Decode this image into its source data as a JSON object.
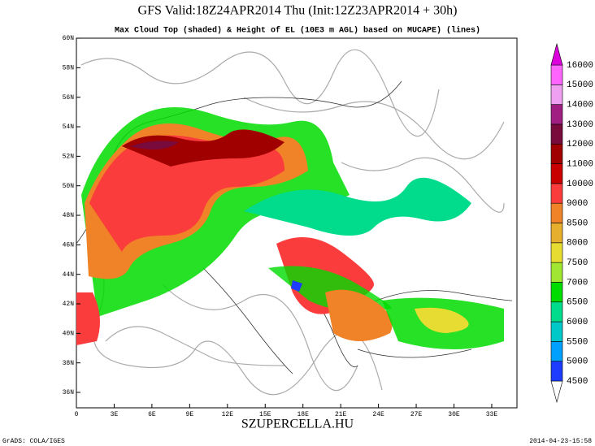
{
  "header": {
    "title": "GFS Valid:18Z24APR2014 Thu (Init:12Z23APR2014 + 30h)",
    "subtitle": "Max Cloud Top (shaded) & Height of EL (10E3 m AGL) based on MUCAPE) (lines)"
  },
  "map": {
    "lat_labels": [
      "36N",
      "38N",
      "40N",
      "42N",
      "44N",
      "46N",
      "48N",
      "50N",
      "52N",
      "54N",
      "56N",
      "58N",
      "60N"
    ],
    "lon_labels": [
      "0",
      "3E",
      "6E",
      "9E",
      "12E",
      "15E",
      "18E",
      "21E",
      "24E",
      "27E",
      "30E",
      "33E"
    ]
  },
  "colorbar": {
    "levels": [
      4500,
      5000,
      5500,
      6000,
      6500,
      7000,
      7500,
      8000,
      8500,
      9000,
      10000,
      11000,
      12000,
      13000,
      14000,
      15000,
      16000
    ],
    "colors": [
      "#ffffff",
      "#1e3cff",
      "#00a0ff",
      "#00c8c8",
      "#00dc8c",
      "#00dc00",
      "#a0e632",
      "#e6dc32",
      "#e6af2d",
      "#f08228",
      "#fa3c3c",
      "#c80000",
      "#a00000",
      "#780a3c",
      "#a01e82",
      "#f0a0f0",
      "#ff64ff",
      "#dc00dc"
    ]
  },
  "footer": {
    "site": "SZUPERCELLA.HU",
    "credit": "GrADS: COLA/IGES",
    "timestamp": "2014-04-23-15:58"
  }
}
